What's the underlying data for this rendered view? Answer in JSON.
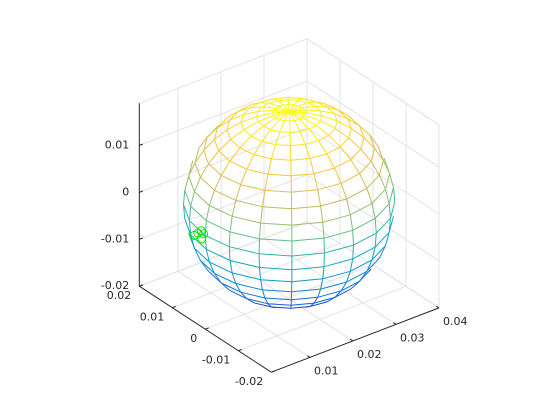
{
  "chart_data": {
    "type": "mesh3d",
    "view": {
      "azimuth": -37.5,
      "elevation": 30
    },
    "sphere": {
      "center": [
        0.0205,
        0,
        0
      ],
      "radius": 0.0195,
      "segments": 20
    },
    "colormap": [
      "#352a87",
      "#0f5cdd",
      "#1481d6",
      "#06a4ca",
      "#2eb7a4",
      "#87bf77",
      "#d1bb59",
      "#fec832",
      "#f9fb0e"
    ],
    "points": {
      "color": "#00e600",
      "x": [
        0.0057,
        0.0062,
        0.0052,
        0.006,
        0.0066
      ],
      "y": [
        0.0084,
        0.008,
        0.0088,
        0.0076,
        0.0078
      ],
      "z": [
        -0.005,
        -0.0045,
        -0.0055,
        -0.006,
        -0.0052
      ]
    },
    "xlim": [
      0.001,
      0.04
    ],
    "ylim": [
      -0.02,
      0.02
    ],
    "zlim": [
      -0.02,
      0.019
    ],
    "xticks": [
      0.01,
      0.02,
      0.03,
      0.04
    ],
    "yticks": [
      -0.02,
      -0.01,
      0,
      0.01,
      0.02
    ],
    "zticks": [
      -0.02,
      -0.01,
      0,
      0.01
    ],
    "grid": true
  }
}
